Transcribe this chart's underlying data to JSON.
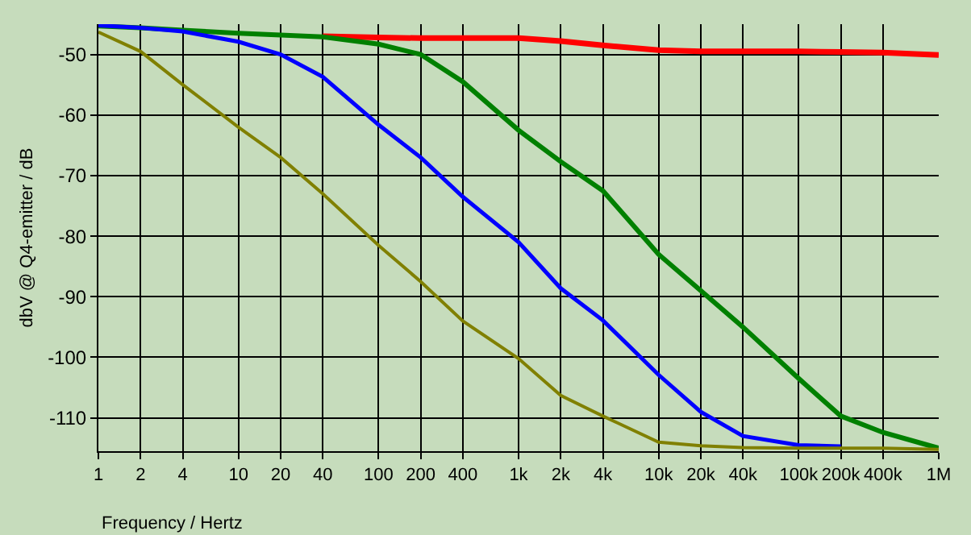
{
  "chart_data": {
    "type": "line",
    "xlabel": "Frequency / Hertz",
    "ylabel": "dbV @ Q4-emitter / dB",
    "log": "x",
    "grid": true,
    "legend": false,
    "marker": "none",
    "line_style": "solid",
    "x": [
      1,
      2,
      4,
      10,
      20,
      40,
      100,
      200,
      400,
      1000,
      2000,
      4000,
      10000,
      20000,
      40000,
      100000,
      200000,
      400000,
      1000000
    ],
    "series": [
      {
        "color": "#ff0000",
        "values": [
          null,
          null,
          null,
          null,
          null,
          -47,
          -47.2,
          -47.3,
          -47.3,
          -47.3,
          -47.8,
          -48.5,
          -49.3,
          -49.5,
          -49.5,
          -49.5,
          -49.6,
          -49.7,
          -50.1
        ]
      },
      {
        "color": "#008000",
        "values": [
          -45.3,
          -45.6,
          -46,
          -46.5,
          -46.8,
          -47.1,
          -48.3,
          -50,
          -54.5,
          -62.5,
          -67.7,
          -72.5,
          -83,
          -89,
          -95,
          -103.5,
          -109.7,
          -112.4,
          -115
        ]
      },
      {
        "color": "#0000ff",
        "values": [
          -45.2,
          -45.6,
          -46.2,
          -47.9,
          -50,
          -53.7,
          -61.6,
          -67,
          -73.5,
          -81,
          -88.6,
          -93.9,
          -102.9,
          -109,
          -113,
          -114.5,
          -114.7,
          null,
          null
        ]
      },
      {
        "color": "#808000",
        "values": [
          -46.3,
          -49.5,
          -55,
          -62,
          -67,
          -73,
          -81.5,
          -87.5,
          -94,
          -100.2,
          -106.3,
          -109.7,
          -114,
          -114.6,
          -114.9,
          -115,
          -115,
          -115,
          -115.2
        ]
      }
    ],
    "xlim": [
      1,
      1000000
    ],
    "ylim": [
      -115.5,
      -45
    ],
    "xticks": [
      1,
      2,
      4,
      10,
      20,
      40,
      100,
      200,
      400,
      {
        "value": 1000,
        "label": "1k"
      },
      {
        "value": 2000,
        "label": "2k"
      },
      {
        "value": 4000,
        "label": "4k"
      },
      {
        "value": 10000,
        "label": "10k"
      },
      {
        "value": 20000,
        "label": "20k"
      },
      {
        "value": 40000,
        "label": "40k"
      },
      {
        "value": 100000,
        "label": "100k"
      },
      {
        "value": 200000,
        "label": "200k"
      },
      {
        "value": 400000,
        "label": "400k"
      },
      {
        "value": 1000000,
        "label": "1M"
      }
    ],
    "yticks": [
      -50,
      -60,
      -70,
      -80,
      -90,
      -100,
      -110
    ]
  }
}
